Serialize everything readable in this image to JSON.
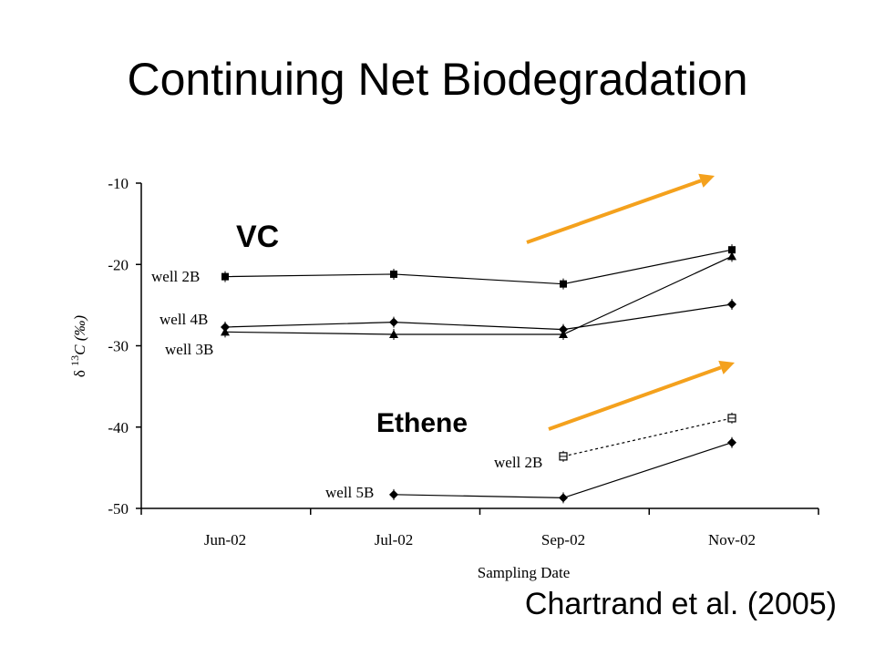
{
  "slide": {
    "title": "Continuing Net Biodegradation",
    "citation": "Chartrand et al. (2005)"
  },
  "colors": {
    "arrow": "#f4a11d",
    "line": "#000000"
  },
  "chart_data": {
    "type": "line",
    "xlabel": "Sampling Date",
    "ylabel_symbol": "δ",
    "ylabel_superscript": "13",
    "ylabel_rest": "C (‰)",
    "categories": [
      "Jun-02",
      "Jul-02",
      "Sep-02",
      "Nov-02"
    ],
    "ylim": [
      -50,
      -10
    ],
    "yticks": [
      -10,
      -20,
      -30,
      -40,
      -50
    ],
    "grid": false,
    "series": [
      {
        "group": "VC",
        "label": "well 2B",
        "marker": "square",
        "dashed": false,
        "values": [
          -21.5,
          -21.2,
          -22.4,
          -18.2
        ]
      },
      {
        "group": "VC",
        "label": "well 4B",
        "marker": "diamond",
        "dashed": false,
        "values": [
          -27.7,
          -27.1,
          -28.0,
          -24.9
        ]
      },
      {
        "group": "VC",
        "label": "well 3B",
        "marker": "triangle",
        "dashed": false,
        "values": [
          -28.3,
          -28.6,
          -28.6,
          -19.0
        ]
      },
      {
        "group": "Ethene",
        "label": "well 2B",
        "marker": "open-square",
        "dashed": true,
        "values": [
          null,
          null,
          -43.6,
          -38.9
        ]
      },
      {
        "group": "Ethene",
        "label": "well 5B",
        "marker": "diamond",
        "dashed": false,
        "values": [
          null,
          -48.3,
          -48.7,
          -41.9
        ]
      }
    ],
    "annotations": {
      "groups": [
        "VC",
        "Ethene"
      ],
      "well_labels": [
        "well 2B",
        "well 4B",
        "well 3B",
        "well 2B",
        "well 5B"
      ]
    }
  }
}
